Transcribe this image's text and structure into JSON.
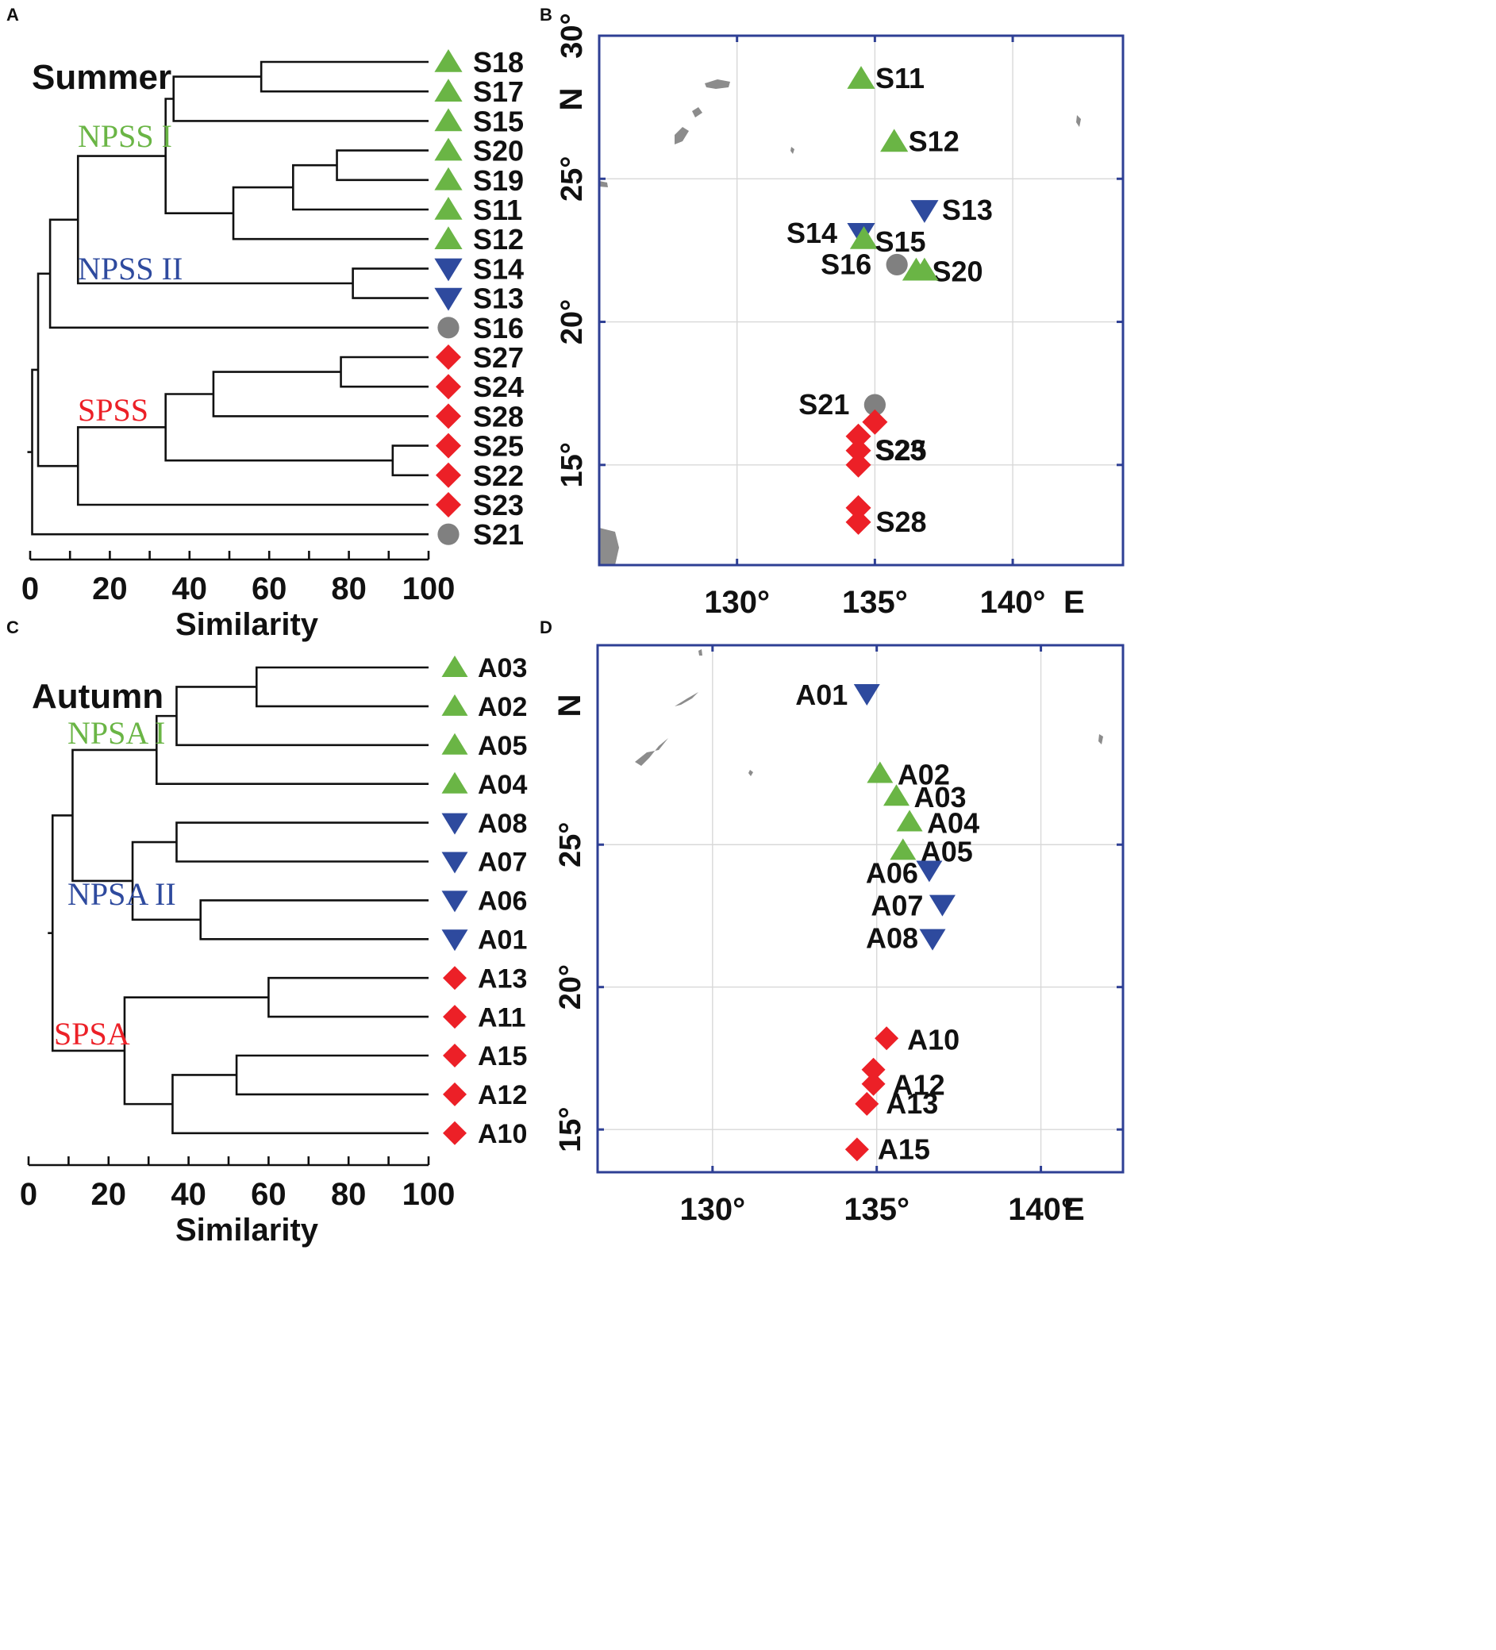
{
  "colors": {
    "green": "#6ab545",
    "blue": "#2e4a9e",
    "red": "#ec2027",
    "gray": "#808080",
    "frame": "#2e3f94"
  },
  "chart_data": [
    {
      "panel": "A",
      "type": "dendrogram",
      "title": "Summer",
      "xlabel": "Similarity",
      "xlim": [
        0,
        100
      ],
      "xticks": [
        0,
        20,
        40,
        60,
        80,
        100
      ],
      "leaves": [
        {
          "label": "S18",
          "group": "green"
        },
        {
          "label": "S17",
          "group": "green"
        },
        {
          "label": "S15",
          "group": "green"
        },
        {
          "label": "S20",
          "group": "green"
        },
        {
          "label": "S19",
          "group": "green"
        },
        {
          "label": "S11",
          "group": "green"
        },
        {
          "label": "S12",
          "group": "green"
        },
        {
          "label": "S14",
          "group": "blue"
        },
        {
          "label": "S13",
          "group": "blue"
        },
        {
          "label": "S16",
          "group": "gray"
        },
        {
          "label": "S27",
          "group": "red"
        },
        {
          "label": "S24",
          "group": "red"
        },
        {
          "label": "S28",
          "group": "red"
        },
        {
          "label": "S25",
          "group": "red"
        },
        {
          "label": "S22",
          "group": "red"
        },
        {
          "label": "S23",
          "group": "red"
        },
        {
          "label": "S21",
          "group": "gray"
        }
      ],
      "merges": [
        {
          "id": "a1",
          "children": [
            "S18",
            "S17"
          ],
          "sim": 58
        },
        {
          "id": "a2",
          "children": [
            "a1",
            "S15"
          ],
          "sim": 36
        },
        {
          "id": "a3",
          "children": [
            "S20",
            "S19"
          ],
          "sim": 77
        },
        {
          "id": "a4",
          "children": [
            "a3",
            "S11"
          ],
          "sim": 66
        },
        {
          "id": "a5",
          "children": [
            "a4",
            "S12"
          ],
          "sim": 51
        },
        {
          "id": "a6",
          "children": [
            "a2",
            "a5"
          ],
          "sim": 34
        },
        {
          "id": "a7",
          "children": [
            "S14",
            "S13"
          ],
          "sim": 81
        },
        {
          "id": "a8",
          "children": [
            "a6",
            "a7"
          ],
          "sim": 12
        },
        {
          "id": "a9",
          "children": [
            "a8",
            "S16"
          ],
          "sim": 5
        },
        {
          "id": "a10",
          "children": [
            "S27",
            "S24"
          ],
          "sim": 78
        },
        {
          "id": "a11",
          "children": [
            "a10",
            "S28"
          ],
          "sim": 46
        },
        {
          "id": "a12",
          "children": [
            "S25",
            "S22"
          ],
          "sim": 91
        },
        {
          "id": "a13",
          "children": [
            "a11",
            "a12"
          ],
          "sim": 34
        },
        {
          "id": "a14",
          "children": [
            "a13",
            "S23"
          ],
          "sim": 12
        },
        {
          "id": "a15",
          "children": [
            "a9",
            "a14"
          ],
          "sim": 2
        },
        {
          "id": "a16",
          "children": [
            "a15",
            "S21"
          ],
          "sim": 0.5
        }
      ],
      "group_labels": [
        {
          "text": "NPSS I",
          "color": "green",
          "node": "a8"
        },
        {
          "text": "NPSS II",
          "color": "blue",
          "node": "a8"
        },
        {
          "text": "SPSS",
          "color": "red",
          "node": "a14"
        }
      ]
    },
    {
      "panel": "B",
      "type": "scatter",
      "xlim": [
        125,
        144
      ],
      "ylim": [
        11.5,
        30
      ],
      "xticks": [
        130,
        135,
        140
      ],
      "xtick_labels": [
        "130°",
        "135°",
        "140°"
      ],
      "x_axis_unit": "E",
      "yticks": [
        15,
        20,
        25,
        30
      ],
      "ytick_labels": [
        "15°",
        "20°",
        "25°",
        "30°"
      ],
      "y_axis_unit": "N",
      "points": [
        {
          "label": "S11",
          "lon": 134.5,
          "lat": 28.5,
          "group": "green"
        },
        {
          "label": "S12",
          "lon": 135.7,
          "lat": 26.3,
          "group": "green"
        },
        {
          "label": "S13",
          "lon": 136.8,
          "lat": 23.9,
          "group": "blue"
        },
        {
          "label": "S14",
          "lon": 134.5,
          "lat": 23.1,
          "group": "blue"
        },
        {
          "label": "S15",
          "lon": 134.6,
          "lat": 22.9,
          "group": "green"
        },
        {
          "label": "S16",
          "lon": 135.8,
          "lat": 22.0,
          "group": "gray"
        },
        {
          "label": "S20",
          "lon": 136.5,
          "lat": 21.8,
          "group": "green"
        },
        {
          "label": "",
          "lon": 136.8,
          "lat": 21.8,
          "group": "green"
        },
        {
          "label": "S21",
          "lon": 135.0,
          "lat": 17.1,
          "group": "gray"
        },
        {
          "label": "S23",
          "lon": 135.0,
          "lat": 16.5,
          "group": "red"
        },
        {
          "label": "",
          "lon": 134.4,
          "lat": 16.0,
          "group": "red"
        },
        {
          "label": "S25",
          "lon": 134.4,
          "lat": 15.5,
          "group": "red"
        },
        {
          "label": "",
          "lon": 134.4,
          "lat": 15.0,
          "group": "red"
        },
        {
          "label": "",
          "lon": 134.4,
          "lat": 13.5,
          "group": "red"
        },
        {
          "label": "S28",
          "lon": 134.4,
          "lat": 13.0,
          "group": "red"
        }
      ]
    },
    {
      "panel": "C",
      "type": "dendrogram",
      "title": "Autumn",
      "xlabel": "Similarity",
      "xlim": [
        0,
        100
      ],
      "xticks": [
        0,
        20,
        40,
        60,
        80,
        100
      ],
      "leaves": [
        {
          "label": "A03",
          "group": "green"
        },
        {
          "label": "A02",
          "group": "green"
        },
        {
          "label": "A05",
          "group": "green"
        },
        {
          "label": "A04",
          "group": "green"
        },
        {
          "label": "A08",
          "group": "blue"
        },
        {
          "label": "A07",
          "group": "blue"
        },
        {
          "label": "A06",
          "group": "blue"
        },
        {
          "label": "A01",
          "group": "blue"
        },
        {
          "label": "A13",
          "group": "red"
        },
        {
          "label": "A11",
          "group": "red"
        },
        {
          "label": "A15",
          "group": "red"
        },
        {
          "label": "A12",
          "group": "red"
        },
        {
          "label": "A10",
          "group": "red"
        }
      ],
      "merges": [
        {
          "id": "c1",
          "children": [
            "A03",
            "A02"
          ],
          "sim": 57
        },
        {
          "id": "c2",
          "children": [
            "c1",
            "A05"
          ],
          "sim": 37
        },
        {
          "id": "c3",
          "children": [
            "c2",
            "A04"
          ],
          "sim": 32
        },
        {
          "id": "c4",
          "children": [
            "A08",
            "A07"
          ],
          "sim": 37
        },
        {
          "id": "c5",
          "children": [
            "A06",
            "A01"
          ],
          "sim": 43
        },
        {
          "id": "c6",
          "children": [
            "c4",
            "c5"
          ],
          "sim": 26
        },
        {
          "id": "c7",
          "children": [
            "c3",
            "c6"
          ],
          "sim": 11
        },
        {
          "id": "c8",
          "children": [
            "A13",
            "A11"
          ],
          "sim": 60
        },
        {
          "id": "c9",
          "children": [
            "A15",
            "A12"
          ],
          "sim": 52
        },
        {
          "id": "c10",
          "children": [
            "c9",
            "A10"
          ],
          "sim": 36
        },
        {
          "id": "c11",
          "children": [
            "c8",
            "c10"
          ],
          "sim": 24
        },
        {
          "id": "c12",
          "children": [
            "c7",
            "c11"
          ],
          "sim": 6
        }
      ],
      "group_labels": [
        {
          "text": "NPSA I",
          "color": "green",
          "node": "c7"
        },
        {
          "text": "NPSA II",
          "color": "blue",
          "node": "c7"
        },
        {
          "text": "SPSA",
          "color": "red",
          "node": "c11"
        }
      ]
    },
    {
      "panel": "D",
      "type": "scatter",
      "xlim": [
        126.5,
        142.5
      ],
      "ylim": [
        13.5,
        32
      ],
      "xticks": [
        130,
        135,
        140
      ],
      "xtick_labels": [
        "130°",
        "135°",
        "140°"
      ],
      "x_axis_unit": "E",
      "yticks": [
        15,
        20,
        25
      ],
      "ytick_labels": [
        "15°",
        "20°",
        "25°"
      ],
      "y_axis_unit": "N",
      "points": [
        {
          "label": "A01",
          "lon": 134.7,
          "lat": 30.3,
          "group": "blue"
        },
        {
          "label": "A02",
          "lon": 135.1,
          "lat": 27.5,
          "group": "green"
        },
        {
          "label": "A03",
          "lon": 135.6,
          "lat": 26.7,
          "group": "green"
        },
        {
          "label": "A04",
          "lon": 136.0,
          "lat": 25.8,
          "group": "green"
        },
        {
          "label": "A05",
          "lon": 135.8,
          "lat": 24.8,
          "group": "green"
        },
        {
          "label": "A06",
          "lon": 136.6,
          "lat": 24.1,
          "group": "blue"
        },
        {
          "label": "A07",
          "lon": 137.0,
          "lat": 22.9,
          "group": "blue"
        },
        {
          "label": "A08",
          "lon": 136.7,
          "lat": 21.7,
          "group": "blue"
        },
        {
          "label": "A10",
          "lon": 135.3,
          "lat": 18.2,
          "group": "red"
        },
        {
          "label": "",
          "lon": 134.9,
          "lat": 17.1,
          "group": "red"
        },
        {
          "label": "A12",
          "lon": 134.9,
          "lat": 16.6,
          "group": "red"
        },
        {
          "label": "A13",
          "lon": 134.7,
          "lat": 15.9,
          "group": "red"
        },
        {
          "label": "A15",
          "lon": 134.4,
          "lat": 14.3,
          "group": "red"
        }
      ]
    }
  ]
}
